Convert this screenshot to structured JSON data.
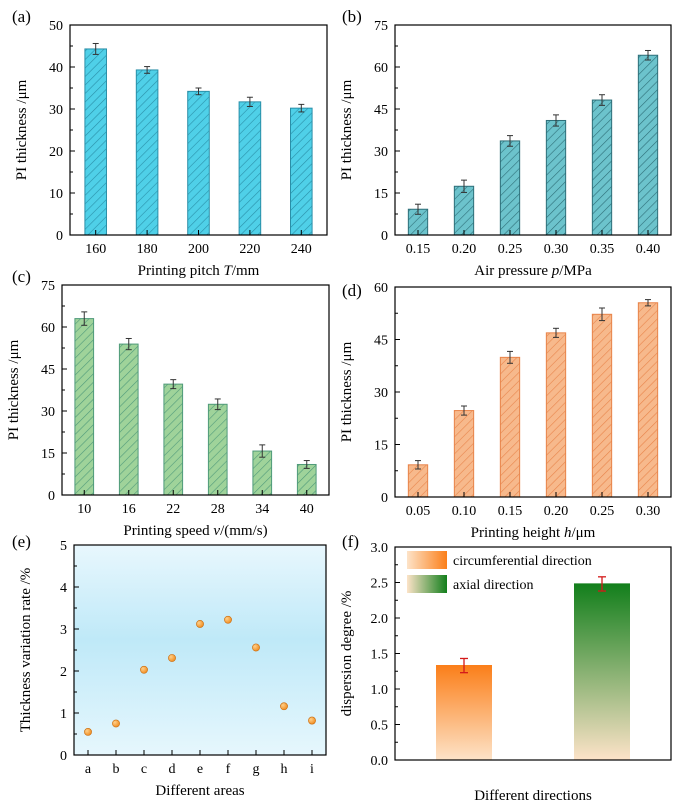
{
  "chart_data": [
    {
      "panel": "(a)",
      "type": "bar",
      "categories": [
        "160",
        "180",
        "200",
        "220",
        "240"
      ],
      "values": [
        44.3,
        39.3,
        34.2,
        31.7,
        30.2
      ],
      "errors": [
        1.3,
        0.8,
        0.8,
        1.1,
        0.9
      ],
      "xlabel": "Printing pitch ",
      "xlabel_var": "T",
      "xlabel_unit": "/mm",
      "ylabel": "PI thickness /μm",
      "ylim": [
        0,
        50
      ],
      "yticks": [
        "0",
        "10",
        "20",
        "30",
        "40",
        "50"
      ],
      "color": "#4fd0e8",
      "hatch": "#2a8fa8"
    },
    {
      "panel": "(b)",
      "type": "bar",
      "categories": [
        "0.15",
        "0.20",
        "0.25",
        "0.30",
        "0.35",
        "0.40"
      ],
      "values": [
        9.2,
        17.4,
        33.6,
        40.9,
        48.2,
        64.2
      ],
      "errors": [
        1.8,
        2.2,
        1.9,
        2.0,
        1.9,
        1.7
      ],
      "xlabel": "Air pressure ",
      "xlabel_var": "p",
      "xlabel_unit": "/MPa",
      "ylabel": "PI thickness /μm",
      "ylim": [
        0,
        75
      ],
      "yticks": [
        "0",
        "15",
        "30",
        "45",
        "60",
        "75"
      ],
      "color": "#6cc3cc",
      "hatch": "#2e6e78"
    },
    {
      "panel": "(c)",
      "type": "bar",
      "categories": [
        "10",
        "16",
        "22",
        "28",
        "34",
        "40"
      ],
      "values": [
        63.0,
        53.9,
        39.6,
        32.4,
        15.7,
        10.9
      ],
      "errors": [
        2.4,
        2.0,
        1.6,
        1.9,
        2.2,
        1.4
      ],
      "xlabel": "Printing speed ",
      "xlabel_var": "v",
      "xlabel_unit": "/(mm/s)",
      "ylabel": "PI thickness /μm",
      "ylim": [
        0,
        75
      ],
      "yticks": [
        "0",
        "15",
        "30",
        "45",
        "60",
        "75"
      ],
      "color": "#9fd39a",
      "hatch": "#4f9a7a"
    },
    {
      "panel": "(d)",
      "type": "bar",
      "categories": [
        "0.05",
        "0.10",
        "0.15",
        "0.20",
        "0.25",
        "0.30"
      ],
      "values": [
        9.2,
        24.7,
        39.9,
        46.9,
        52.2,
        55.5
      ],
      "errors": [
        1.2,
        1.3,
        1.7,
        1.3,
        1.8,
        0.9
      ],
      "xlabel": "Printing height ",
      "xlabel_var": "h",
      "xlabel_unit": "/μm",
      "ylabel": "PI thickness /μm",
      "ylim": [
        0,
        60
      ],
      "yticks": [
        "0",
        "15",
        "30",
        "45",
        "60"
      ],
      "color": "#f7b98c",
      "hatch": "#e8844a"
    },
    {
      "panel": "(e)",
      "type": "scatter",
      "categories": [
        "a",
        "b",
        "c",
        "d",
        "e",
        "f",
        "g",
        "h",
        "i"
      ],
      "values": [
        0.55,
        0.75,
        2.03,
        2.31,
        3.12,
        3.22,
        2.56,
        1.16,
        0.82
      ],
      "xlabel": "Different areas",
      "ylabel": "Thickness variation rate /%",
      "ylim": [
        0,
        5
      ],
      "yticks": [
        "0",
        "1",
        "2",
        "3",
        "4",
        "5"
      ],
      "color": "#f08a1c"
    },
    {
      "panel": "(f)",
      "type": "bar",
      "series": [
        {
          "name": "circumferential direction",
          "value": 1.33,
          "error": 0.1,
          "top_color": "#fb7f1a",
          "bottom_color": "#fde3c8"
        },
        {
          "name": "axial direction",
          "value": 2.48,
          "error": 0.1,
          "top_color": "#137f1c",
          "bottom_color": "#fde3c8"
        }
      ],
      "xlabel": "Different directions",
      "ylabel": "dispersion degree /%",
      "ylim": [
        0,
        3.0
      ],
      "yticks": [
        "0.0",
        "0.5",
        "1.0",
        "1.5",
        "2.0",
        "2.5",
        "3.0"
      ],
      "legend": "top-left",
      "error_color": "#d41a1a"
    }
  ]
}
